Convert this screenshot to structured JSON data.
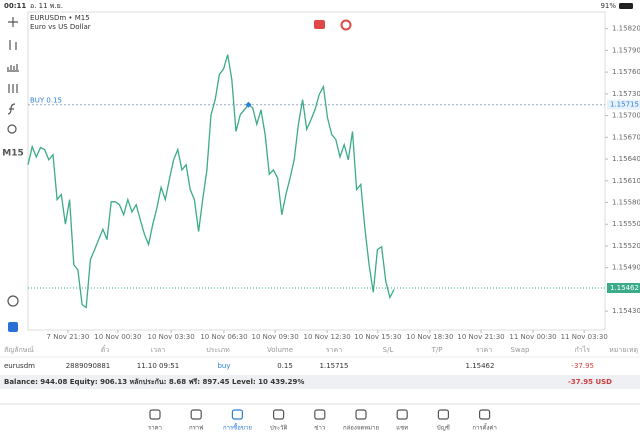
{
  "status_bar": {
    "time": "00:11",
    "date": "อ. 11 พ.ย.",
    "battery": "91%"
  },
  "sidebar": {
    "timeframe": "M15"
  },
  "chart_data": {
    "type": "line",
    "title": "EURUSDm • M15",
    "subtitle": "Euro vs US Dollar",
    "color": "#3bab8a",
    "values": [
      1.15632,
      1.15657,
      1.15643,
      1.15656,
      1.15653,
      1.15639,
      1.15646,
      1.15584,
      1.15591,
      1.1555,
      1.15584,
      1.15494,
      1.15487,
      1.15439,
      1.15435,
      1.15501,
      1.15515,
      1.15529,
      1.15543,
      1.15529,
      1.15581,
      1.15581,
      1.15577,
      1.15563,
      1.15584,
      1.15567,
      1.15577,
      1.15556,
      1.15536,
      1.15522,
      1.1555,
      1.15573,
      1.15601,
      1.15584,
      1.15612,
      1.15639,
      1.15653,
      1.15625,
      1.15632,
      1.15598,
      1.15584,
      1.1554,
      1.15584,
      1.15625,
      1.15701,
      1.15722,
      1.15757,
      1.15764,
      1.15784,
      1.1575,
      1.15678,
      1.15701,
      1.15708,
      1.15715,
      1.15711,
      1.15688,
      1.15708,
      1.15674,
      1.15619,
      1.15625,
      1.15614,
      1.15563,
      1.15591,
      1.15614,
      1.15639,
      1.15688,
      1.15722,
      1.15681,
      1.15694,
      1.15708,
      1.15729,
      1.1574,
      1.15697,
      1.15674,
      1.15667,
      1.15643,
      1.1566,
      1.15639,
      1.15678,
      1.15598,
      1.15605,
      1.15543,
      1.15494,
      1.15456,
      1.15515,
      1.15519,
      1.15471,
      1.15449,
      1.1546
    ],
    "xlim": [
      0,
      138.7
    ],
    "xticks": [
      {
        "value": 9.6,
        "label": "7 Nov 21:30"
      },
      {
        "value": 21.6,
        "label": "10 Nov 00:30"
      },
      {
        "value": 34.4,
        "label": "10 Nov 03:30"
      },
      {
        "value": 47.1,
        "label": "10 Nov 06:30"
      },
      {
        "value": 59.4,
        "label": "10 Nov 09:30"
      },
      {
        "value": 71.9,
        "label": "10 Nov 12:30"
      },
      {
        "value": 84.1,
        "label": "10 Nov 15:30"
      },
      {
        "value": 96.6,
        "label": "10 Nov 18:30"
      },
      {
        "value": 108.9,
        "label": "10 Nov 21:30"
      },
      {
        "value": 121.4,
        "label": "11 Nov 00:30"
      },
      {
        "value": 133.7,
        "label": "11 Nov 03:30"
      }
    ],
    "ylim": [
      1.15404,
      1.15843
    ],
    "yticks": [
      {
        "value": 1.1543,
        "label": "1.15430"
      },
      {
        "value": 1.1549,
        "label": "1.15490"
      },
      {
        "value": 1.1552,
        "label": "1.15520"
      },
      {
        "value": 1.1555,
        "label": "1.15550"
      },
      {
        "value": 1.1558,
        "label": "1.15580"
      },
      {
        "value": 1.1561,
        "label": "1.15610"
      },
      {
        "value": 1.1564,
        "label": "1.15640"
      },
      {
        "value": 1.1567,
        "label": "1.15670"
      },
      {
        "value": 1.157,
        "label": "1.15700"
      },
      {
        "value": 1.1573,
        "label": "1.15730"
      },
      {
        "value": 1.1576,
        "label": "1.15760"
      },
      {
        "value": 1.1579,
        "label": "1.15790"
      },
      {
        "value": 1.1582,
        "label": "1.15820"
      }
    ],
    "buy_line": {
      "label": "BUY 0.15",
      "value": 1.15715
    },
    "current_price": 1.15462
  },
  "table": {
    "columns": [
      "สัญลักษณ์",
      "ตั๋ว",
      "เวลา",
      "ประเภท",
      "Volume",
      "ราคา",
      "S/L",
      "T/P",
      "ราคา",
      "Swap",
      "กำไร",
      "หมายเหตุ"
    ],
    "row": {
      "symbol": "eurusdm",
      "ticket": "2889090881",
      "time": "11.10 09:51",
      "type": "buy",
      "volume": "0.15",
      "open_price": "1.15715",
      "price": "1.15462",
      "profit": "-37.95"
    }
  },
  "summary": {
    "text": "Balance: 944.08 Equity: 906.13 หลักประกัน: 8.68 ฟรี: 897.45 Level: 10 439.29%",
    "profit": "-37.95  USD"
  },
  "tabs": [
    "ราคา",
    "กราฟ",
    "การซื้อขาย",
    "ประวัติ",
    "ข่าว",
    "กล่องจดหมาย",
    "แชท",
    "บัญชี",
    "การตั้งค่า"
  ],
  "active_tab": 2
}
